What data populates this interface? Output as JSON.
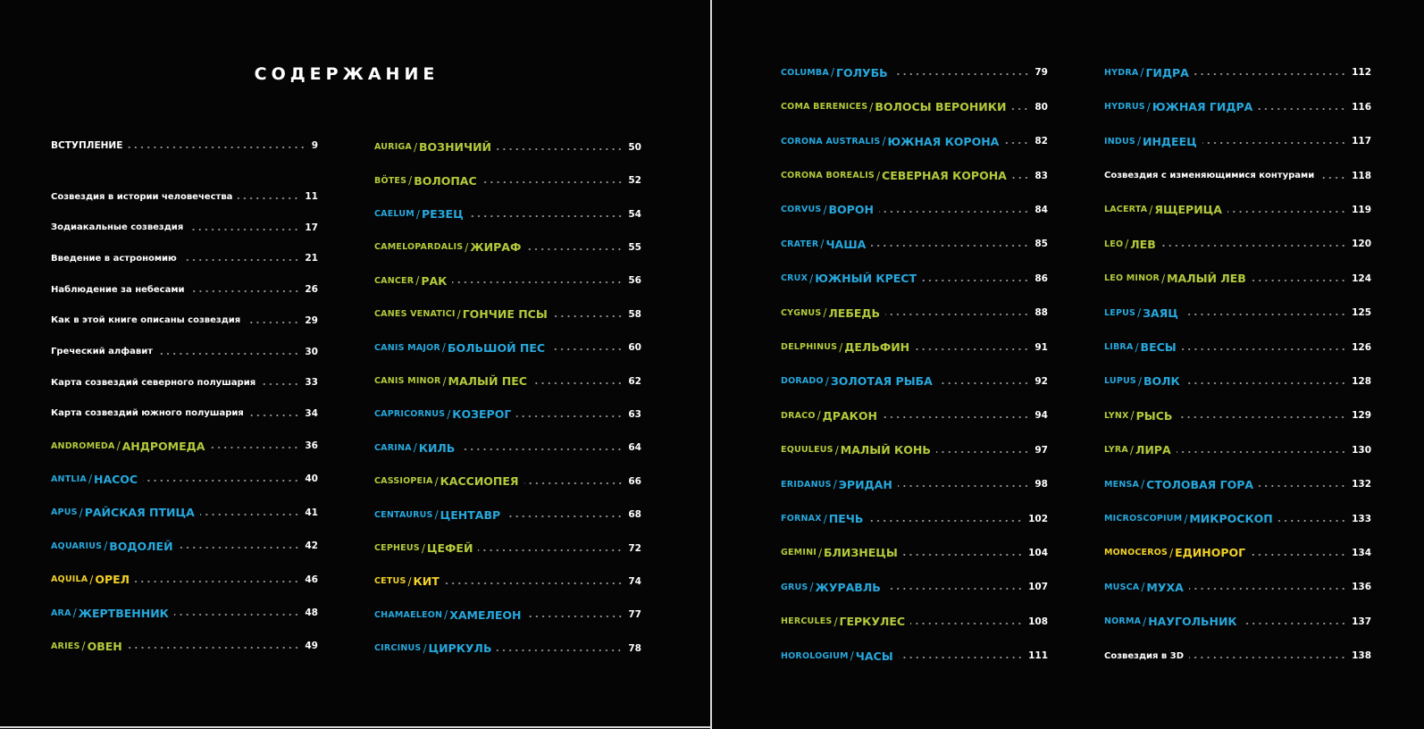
{
  "title": "СОДЕРЖАНИЕ",
  "colors": {
    "green": "#b4c93c",
    "blue": "#27a7dc",
    "yellow": "#f0d02a",
    "white": "#ffffff"
  },
  "columns": [
    [
      {
        "text": "ВСТУПЛЕНИЕ",
        "page": "9",
        "caps": true
      },
      {
        "text": "Созвездия в истории человечества",
        "page": "11"
      },
      {
        "text": "Зодиакальные созвездия",
        "page": "17"
      },
      {
        "text": "Введение в астрономию",
        "page": "21"
      },
      {
        "text": "Наблюдение за небесами",
        "page": "26"
      },
      {
        "text": "Как в этой книге описаны созвездия",
        "page": "29"
      },
      {
        "text": "Греческий алфавит",
        "page": "30"
      },
      {
        "text": "Карта созвездий северного полушария",
        "page": "33"
      },
      {
        "text": "Карта созвездий южного полушария",
        "page": "34"
      },
      {
        "latin": "ANDROMEDA",
        "russian": "АНДРОМЕДА",
        "page": "36",
        "color": "green"
      },
      {
        "latin": "ANTLIA",
        "russian": "НАСОС",
        "page": "40",
        "color": "blue"
      },
      {
        "latin": "APUS",
        "russian": "РАЙСКАЯ ПТИЦА",
        "page": "41",
        "color": "blue"
      },
      {
        "latin": "AQUARIUS",
        "russian": "ВОДОЛЕЙ",
        "page": "42",
        "color": "blue"
      },
      {
        "latin": "AQUILA",
        "russian": "ОРЕЛ",
        "page": "46",
        "color": "yellow"
      },
      {
        "latin": "ARA",
        "russian": "ЖЕРТВЕННИК",
        "page": "48",
        "color": "blue"
      },
      {
        "latin": "ARIES",
        "russian": "ОВЕН",
        "page": "49",
        "color": "green"
      }
    ],
    [
      {
        "latin": "AURIGA",
        "russian": "ВОЗНИЧИЙ",
        "page": "50",
        "color": "green"
      },
      {
        "latin": "BÖTES",
        "russian": "ВОЛОПАС",
        "page": "52",
        "color": "green"
      },
      {
        "latin": "CAELUM",
        "russian": "РЕЗЕЦ",
        "page": "54",
        "color": "blue"
      },
      {
        "latin": "CAMELOPARDALIS",
        "russian": "ЖИРАФ",
        "page": "55",
        "color": "green"
      },
      {
        "latin": "CANCER",
        "russian": "РАК",
        "page": "56",
        "color": "green"
      },
      {
        "latin": "CANES VENATICI",
        "russian": "ГОНЧИЕ ПСЫ",
        "page": "58",
        "color": "green"
      },
      {
        "latin": "CANIS MAJOR",
        "russian": "БОЛЬШОЙ ПЕС",
        "page": "60",
        "color": "blue"
      },
      {
        "latin": "CANIS MINOR",
        "russian": "МАЛЫЙ ПЕС",
        "page": "62",
        "color": "green"
      },
      {
        "latin": "CAPRICORNUS",
        "russian": "КОЗЕРОГ",
        "page": "63",
        "color": "blue"
      },
      {
        "latin": "CARINA",
        "russian": "КИЛЬ",
        "page": "64",
        "color": "blue"
      },
      {
        "latin": "CASSIOPEIA",
        "russian": "КАССИОПЕЯ",
        "page": "66",
        "color": "green"
      },
      {
        "latin": "CENTAURUS",
        "russian": "ЦЕНТАВР",
        "page": "68",
        "color": "blue"
      },
      {
        "latin": "CEPHEUS",
        "russian": "ЦЕФЕЙ",
        "page": "72",
        "color": "green"
      },
      {
        "latin": "CETUS",
        "russian": "КИТ",
        "page": "74",
        "color": "yellow"
      },
      {
        "latin": "CHAMAELEON",
        "russian": "ХАМЕЛЕОН",
        "page": "77",
        "color": "blue"
      },
      {
        "latin": "CIRCINUS",
        "russian": "ЦИРКУЛЬ",
        "page": "78",
        "color": "blue"
      }
    ],
    [
      {
        "latin": "COLUMBA",
        "russian": "ГОЛУБЬ",
        "page": "79",
        "color": "blue"
      },
      {
        "latin": "COMA BERENICES",
        "russian": "ВОЛОСЫ ВЕРОНИКИ",
        "page": "80",
        "color": "green"
      },
      {
        "latin": "CORONA AUSTRALIS",
        "russian": "ЮЖНАЯ КОРОНА",
        "page": "82",
        "color": "blue"
      },
      {
        "latin": "CORONA BOREALIS",
        "russian": "СЕВЕРНАЯ КОРОНА",
        "page": "83",
        "color": "green"
      },
      {
        "latin": "CORVUS",
        "russian": "ВОРОН",
        "page": "84",
        "color": "blue"
      },
      {
        "latin": "CRATER",
        "russian": "ЧАША",
        "page": "85",
        "color": "blue"
      },
      {
        "latin": "CRUX",
        "russian": "ЮЖНЫЙ КРЕСТ",
        "page": "86",
        "color": "blue"
      },
      {
        "latin": "CYGNUS",
        "russian": "ЛЕБЕДЬ",
        "page": "88",
        "color": "green"
      },
      {
        "latin": "DELPHINUS",
        "russian": "ДЕЛЬФИН",
        "page": "91",
        "color": "green"
      },
      {
        "latin": "DORADO",
        "russian": "ЗОЛОТАЯ РЫБА",
        "page": "92",
        "color": "blue"
      },
      {
        "latin": "DRACO",
        "russian": "ДРАКОН",
        "page": "94",
        "color": "green"
      },
      {
        "latin": "EQUULEUS",
        "russian": "МАЛЫЙ КОНЬ",
        "page": "97",
        "color": "green"
      },
      {
        "latin": "ERIDANUS",
        "russian": "ЭРИДАН",
        "page": "98",
        "color": "blue"
      },
      {
        "latin": "FORNAX",
        "russian": "ПЕЧЬ",
        "page": "102",
        "color": "blue"
      },
      {
        "latin": "GEMINI",
        "russian": "БЛИЗНЕЦЫ",
        "page": "104",
        "color": "green"
      },
      {
        "latin": "GRUS",
        "russian": "ЖУРАВЛЬ",
        "page": "107",
        "color": "blue"
      },
      {
        "latin": "HERCULES",
        "russian": "ГЕРКУЛЕС",
        "page": "108",
        "color": "green"
      },
      {
        "latin": "HOROLOGIUM",
        "russian": "ЧАСЫ",
        "page": "111",
        "color": "blue"
      }
    ],
    [
      {
        "latin": "HYDRA",
        "russian": "ГИДРА",
        "page": "112",
        "color": "blue"
      },
      {
        "latin": "HYDRUS",
        "russian": "ЮЖНАЯ ГИДРА",
        "page": "116",
        "color": "blue"
      },
      {
        "latin": "INDUS",
        "russian": "ИНДЕЕЦ",
        "page": "117",
        "color": "blue"
      },
      {
        "text": "Созвездия с изменяющимися контурами",
        "page": "118"
      },
      {
        "latin": "LACERTA",
        "russian": "ЯЩЕРИЦА",
        "page": "119",
        "color": "green"
      },
      {
        "latin": "LEO",
        "russian": "ЛЕВ",
        "page": "120",
        "color": "green"
      },
      {
        "latin": "LEO MINOR",
        "russian": "МАЛЫЙ ЛЕВ",
        "page": "124",
        "color": "green"
      },
      {
        "latin": "LEPUS",
        "russian": "ЗАЯЦ",
        "page": "125",
        "color": "blue"
      },
      {
        "latin": "LIBRA",
        "russian": "ВЕСЫ",
        "page": "126",
        "color": "blue"
      },
      {
        "latin": "LUPUS",
        "russian": "ВОЛК",
        "page": "128",
        "color": "blue"
      },
      {
        "latin": "LYNX",
        "russian": "РЫСЬ",
        "page": "129",
        "color": "green"
      },
      {
        "latin": "LYRA",
        "russian": "ЛИРА",
        "page": "130",
        "color": "green"
      },
      {
        "latin": "MENSA",
        "russian": "СТОЛОВАЯ ГОРА",
        "page": "132",
        "color": "blue"
      },
      {
        "latin": "MICROSCOPIUM",
        "russian": "МИКРОСКОП",
        "page": "133",
        "color": "blue"
      },
      {
        "latin": "MONOCEROS",
        "russian": "ЕДИНОРОГ",
        "page": "134",
        "color": "yellow"
      },
      {
        "latin": "MUSCA",
        "russian": "МУХА",
        "page": "136",
        "color": "blue"
      },
      {
        "latin": "NORMA",
        "russian": "НАУГОЛЬНИК",
        "page": "137",
        "color": "blue"
      },
      {
        "text": "Созвездия в 3D",
        "page": "138"
      }
    ]
  ]
}
